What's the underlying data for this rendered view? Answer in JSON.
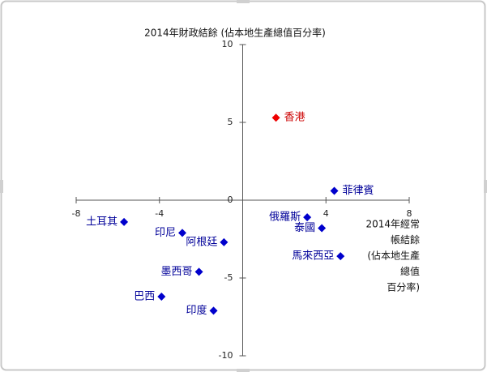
{
  "chart_data": {
    "type": "scatter",
    "ylabel": "2014年財政結餘 (佔本地生產總值百分率)",
    "xlabel": [
      "2014年經常",
      "帳結餘",
      "(佔本地生產",
      "總值",
      "百分率)"
    ],
    "labels": [
      "香港",
      "菲律賓",
      "俄羅斯",
      "泰國",
      "馬來西亞",
      "土耳其",
      "印尼",
      "阿根廷",
      "墨西哥",
      "巴西",
      "印度"
    ],
    "x": [
      1.6,
      4.4,
      3.1,
      3.8,
      4.7,
      -5.7,
      -2.9,
      -0.9,
      -2.1,
      -3.9,
      -1.4
    ],
    "values": [
      5.3,
      0.6,
      -1.1,
      -1.8,
      -3.6,
      -1.4,
      -2.1,
      -2.7,
      -4.6,
      -6.2,
      -7.1
    ],
    "colors": [
      "#ee0000",
      "#0000cc",
      "#0000cc",
      "#0000cc",
      "#0000cc",
      "#0000cc",
      "#0000cc",
      "#0000cc",
      "#0000cc",
      "#0000cc",
      "#0000cc"
    ],
    "label_colors": [
      "#cc0000",
      "#000099",
      "#000099",
      "#000099",
      "#000099",
      "#000099",
      "#000099",
      "#000099",
      "#000099",
      "#000099",
      "#000099"
    ],
    "xlim": [
      -8,
      8
    ],
    "xticks": [
      -8,
      -4,
      4,
      8
    ],
    "ylim": [
      -10,
      10
    ],
    "yticks": [
      10,
      5,
      0,
      -5,
      -10
    ]
  }
}
